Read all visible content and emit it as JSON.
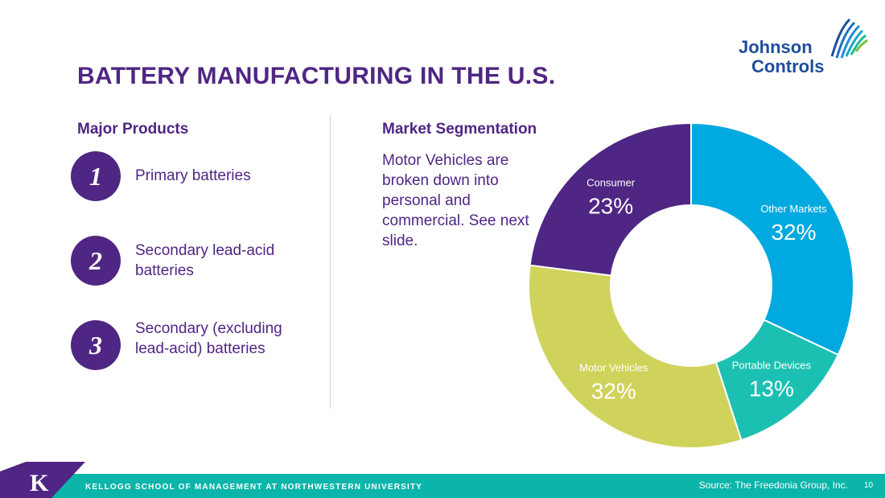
{
  "slide": {
    "title": "BATTERY MANUFACTURING IN THE U.S.",
    "logo": {
      "line1": "Johnson",
      "line2": "Controls"
    },
    "products_heading": "Major Products",
    "products": [
      {
        "number": "1",
        "label": "Primary batteries"
      },
      {
        "number": "2",
        "label": "Secondary lead-acid batteries"
      },
      {
        "number": "3",
        "label": "Secondary (excluding lead-acid) batteries"
      }
    ],
    "market_heading": "Market Segmentation",
    "market_note": "Motor Vehicles are broken down into personal and commercial. See next slide.",
    "footer": {
      "school": "KELLOGG SCHOOL OF MANAGEMENT AT NORTHWESTERN UNIVERSITY",
      "badge_letter": "K",
      "source": "Source: The Freedonia Group, Inc.",
      "page": "10"
    }
  },
  "chart_data": {
    "type": "pie",
    "donut": true,
    "categories": [
      "Other Markets",
      "Portable Devices",
      "Motor Vehicles",
      "Consumer"
    ],
    "values": [
      32,
      13,
      32,
      23
    ],
    "labels": [
      "32%",
      "13%",
      "32%",
      "23%"
    ],
    "colors": [
      "#00a9e0",
      "#1cc0b2",
      "#d0d35b",
      "#4f2683"
    ]
  }
}
